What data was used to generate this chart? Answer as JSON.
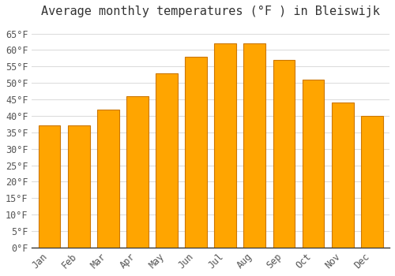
{
  "title": "Average monthly temperatures (°F ) in Bleiswijk",
  "months": [
    "Jan",
    "Feb",
    "Mar",
    "Apr",
    "May",
    "Jun",
    "Jul",
    "Aug",
    "Sep",
    "Oct",
    "Nov",
    "Dec"
  ],
  "values": [
    37,
    37,
    42,
    46,
    53,
    58,
    62,
    62,
    57,
    51,
    44,
    40
  ],
  "bar_color": "#FFA500",
  "bar_edge_color": "#CC7700",
  "background_color": "#FFFFFF",
  "grid_color": "#DDDDDD",
  "text_color": "#555555",
  "ylim": [
    0,
    68
  ],
  "yticks": [
    0,
    5,
    10,
    15,
    20,
    25,
    30,
    35,
    40,
    45,
    50,
    55,
    60,
    65
  ],
  "title_fontsize": 11,
  "tick_fontsize": 8.5,
  "bar_width": 0.75
}
